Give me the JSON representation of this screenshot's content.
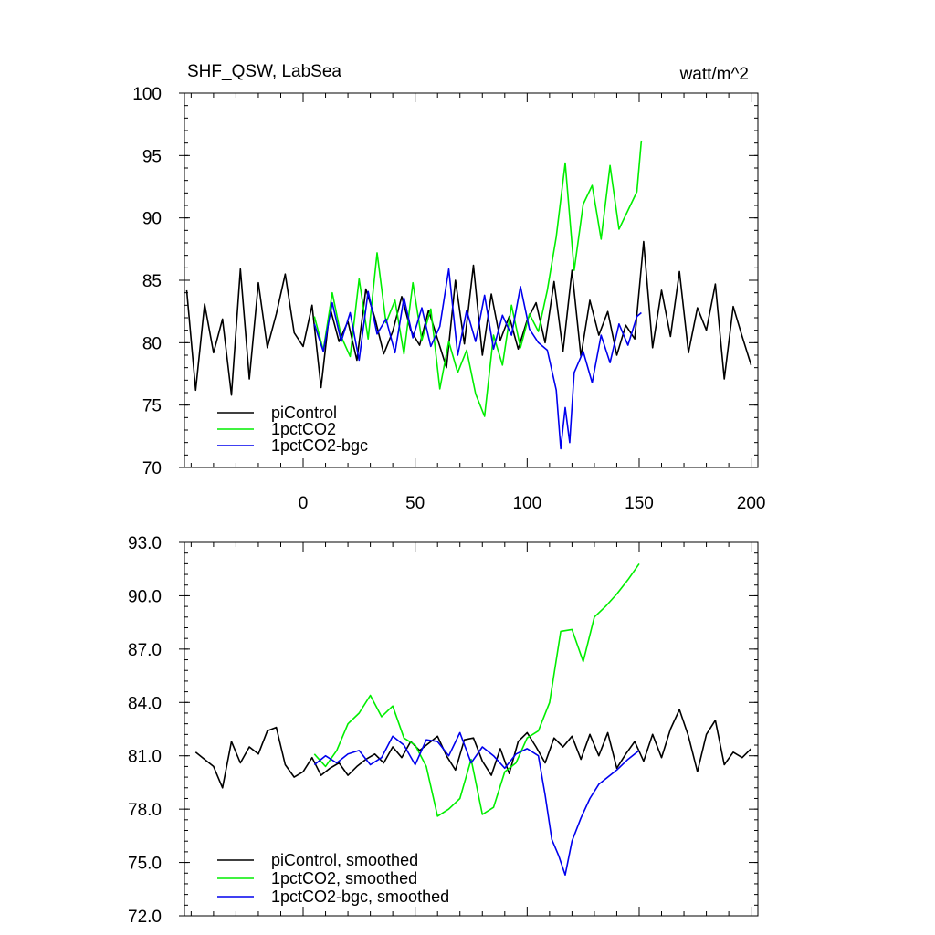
{
  "chart_data": [
    {
      "type": "line",
      "title": "SHF_QSW, LabSea",
      "units": "watt/m^2",
      "xlim": [
        -53,
        203
      ],
      "ylim": [
        70,
        100
      ],
      "x_ticks": [
        0,
        50,
        100,
        150,
        200
      ],
      "x_tick_labels": [
        "0",
        "50",
        "100",
        "150",
        "200"
      ],
      "y_ticks": [
        70,
        75,
        80,
        85,
        90,
        95,
        100
      ],
      "y_tick_labels": [
        "70",
        "75",
        "80",
        "85",
        "90",
        "95",
        "100"
      ],
      "legend_position": "bottom-left",
      "series": [
        {
          "name": "piControl",
          "color": "#000000",
          "x": [
            -52,
            -48,
            -44,
            -40,
            -36,
            -32,
            -28,
            -24,
            -20,
            -16,
            -12,
            -8,
            -4,
            0,
            4,
            8,
            12,
            16,
            20,
            24,
            28,
            32,
            36,
            40,
            44,
            48,
            52,
            56,
            60,
            64,
            68,
            72,
            76,
            80,
            84,
            88,
            92,
            96,
            100,
            104,
            108,
            112,
            116,
            120,
            124,
            128,
            132,
            136,
            140,
            144,
            148,
            152,
            156,
            160,
            164,
            168,
            172,
            176,
            180,
            184,
            188,
            192,
            196,
            200
          ],
          "values": [
            84.2,
            76.2,
            83.1,
            79.2,
            81.9,
            75.8,
            85.9,
            77.1,
            84.8,
            79.6,
            82.3,
            85.5,
            80.8,
            79.7,
            83.0,
            76.4,
            82.8,
            80.1,
            81.7,
            78.6,
            84.3,
            82.0,
            79.1,
            80.9,
            83.7,
            81.0,
            79.8,
            82.6,
            80.3,
            78.0,
            85.0,
            79.9,
            86.2,
            79.0,
            83.9,
            80.2,
            82.1,
            79.5,
            81.8,
            83.2,
            80.0,
            84.9,
            79.3,
            85.8,
            78.9,
            83.4,
            80.6,
            82.5,
            79.0,
            81.4,
            80.3,
            88.1,
            79.6,
            84.2,
            80.5,
            85.7,
            79.2,
            82.8,
            81.0,
            84.7,
            77.1,
            82.9,
            80.5,
            78.2
          ]
        },
        {
          "name": "1pctCO2",
          "color": "#00ee00",
          "x": [
            5,
            9,
            13,
            17,
            21,
            25,
            29,
            33,
            37,
            41,
            45,
            49,
            53,
            57,
            61,
            65,
            69,
            73,
            77,
            81,
            85,
            89,
            93,
            97,
            101,
            105,
            109,
            113,
            117,
            121,
            125,
            129,
            133,
            137,
            141,
            145,
            149,
            151
          ],
          "values": [
            82.1,
            79.4,
            84.0,
            80.5,
            78.9,
            85.1,
            80.3,
            87.2,
            81.6,
            83.4,
            79.1,
            84.8,
            80.2,
            82.7,
            76.3,
            80.1,
            77.6,
            79.4,
            75.9,
            74.1,
            80.6,
            78.2,
            83.0,
            79.6,
            82.3,
            80.9,
            84.2,
            88.5,
            94.4,
            85.8,
            91.1,
            92.6,
            88.3,
            94.2,
            89.1,
            90.6,
            92.1,
            96.2
          ]
        },
        {
          "name": "1pctCO2-bgc",
          "color": "#0000ee",
          "x": [
            5,
            9,
            13,
            17,
            21,
            25,
            29,
            33,
            37,
            41,
            45,
            49,
            53,
            57,
            61,
            65,
            69,
            73,
            77,
            81,
            85,
            89,
            93,
            97,
            101,
            105,
            109,
            113,
            115,
            117,
            119,
            121,
            125,
            129,
            133,
            137,
            141,
            145,
            149,
            151
          ],
          "values": [
            81.5,
            79.3,
            83.2,
            80.1,
            82.4,
            78.6,
            84.1,
            80.7,
            81.9,
            79.2,
            83.6,
            80.4,
            82.8,
            79.7,
            81.3,
            85.9,
            79.0,
            82.6,
            80.1,
            83.8,
            79.5,
            82.2,
            80.6,
            84.5,
            81.1,
            80.0,
            79.4,
            76.2,
            71.5,
            74.8,
            72.0,
            77.6,
            79.3,
            76.8,
            80.6,
            78.4,
            81.5,
            79.8,
            82.1,
            82.4
          ]
        }
      ]
    },
    {
      "type": "line",
      "title": "",
      "xlim": [
        -53,
        203
      ],
      "ylim": [
        72,
        93
      ],
      "x_ticks": [
        0,
        50,
        100,
        150,
        200
      ],
      "y_ticks": [
        72,
        75,
        78,
        81,
        84,
        87,
        90,
        93
      ],
      "y_tick_labels": [
        "72.0",
        "75.0",
        "78.0",
        "81.0",
        "84.0",
        "87.0",
        "90.0",
        "93.0"
      ],
      "legend_position": "bottom-left",
      "series": [
        {
          "name": "piControl, smoothed",
          "color": "#000000",
          "x": [
            -48,
            -44,
            -40,
            -36,
            -32,
            -28,
            -24,
            -20,
            -16,
            -12,
            -8,
            -4,
            0,
            4,
            8,
            12,
            16,
            20,
            24,
            28,
            32,
            36,
            40,
            44,
            48,
            52,
            56,
            60,
            64,
            68,
            72,
            76,
            80,
            84,
            88,
            92,
            96,
            100,
            104,
            108,
            112,
            116,
            120,
            124,
            128,
            132,
            136,
            140,
            144,
            148,
            152,
            156,
            160,
            164,
            168,
            172,
            176,
            180,
            184,
            188,
            192,
            196,
            200
          ],
          "values": [
            81.2,
            80.8,
            80.4,
            79.2,
            81.8,
            80.6,
            81.5,
            81.1,
            82.4,
            82.6,
            80.5,
            79.8,
            80.1,
            80.9,
            79.9,
            80.3,
            80.6,
            79.9,
            80.4,
            80.8,
            81.1,
            80.6,
            81.5,
            80.9,
            81.8,
            81.3,
            81.7,
            82.1,
            81.0,
            80.2,
            81.9,
            82.0,
            80.7,
            79.9,
            81.4,
            80.0,
            81.8,
            82.3,
            81.5,
            80.6,
            82.0,
            81.5,
            82.1,
            80.8,
            82.2,
            81.0,
            82.3,
            80.3,
            81.1,
            81.8,
            80.7,
            82.2,
            80.9,
            82.5,
            83.6,
            82.1,
            80.1,
            82.2,
            83.0,
            80.5,
            81.2,
            80.9,
            81.4
          ]
        },
        {
          "name": "1pctCO2, smoothed",
          "color": "#00ee00",
          "x": [
            5,
            10,
            15,
            20,
            25,
            30,
            35,
            40,
            45,
            50,
            55,
            60,
            65,
            70,
            75,
            80,
            85,
            90,
            95,
            100,
            105,
            110,
            115,
            120,
            125,
            130,
            135,
            140,
            145,
            150
          ],
          "values": [
            81.1,
            80.4,
            81.3,
            82.8,
            83.4,
            84.4,
            83.2,
            83.8,
            82.0,
            81.6,
            80.4,
            77.6,
            78.0,
            78.6,
            80.8,
            77.7,
            78.1,
            80.1,
            80.6,
            82.0,
            82.4,
            84.0,
            88.0,
            88.1,
            86.3,
            88.8,
            89.4,
            90.1,
            90.9,
            91.8
          ]
        },
        {
          "name": "1pctCO2-bgc, smoothed",
          "color": "#0000ee",
          "x": [
            5,
            10,
            15,
            20,
            25,
            30,
            35,
            40,
            45,
            50,
            55,
            60,
            65,
            70,
            75,
            80,
            85,
            90,
            95,
            100,
            105,
            108,
            111,
            114,
            117,
            120,
            124,
            128,
            132,
            136,
            140,
            145,
            150
          ],
          "values": [
            80.5,
            81.0,
            80.6,
            81.1,
            81.3,
            80.5,
            80.9,
            82.1,
            81.6,
            80.5,
            81.9,
            81.8,
            81.0,
            82.3,
            80.6,
            81.5,
            81.0,
            80.3,
            81.1,
            81.4,
            81.0,
            78.8,
            76.3,
            75.4,
            74.3,
            76.2,
            77.5,
            78.6,
            79.4,
            79.8,
            80.2,
            80.8,
            81.3
          ]
        }
      ]
    }
  ]
}
